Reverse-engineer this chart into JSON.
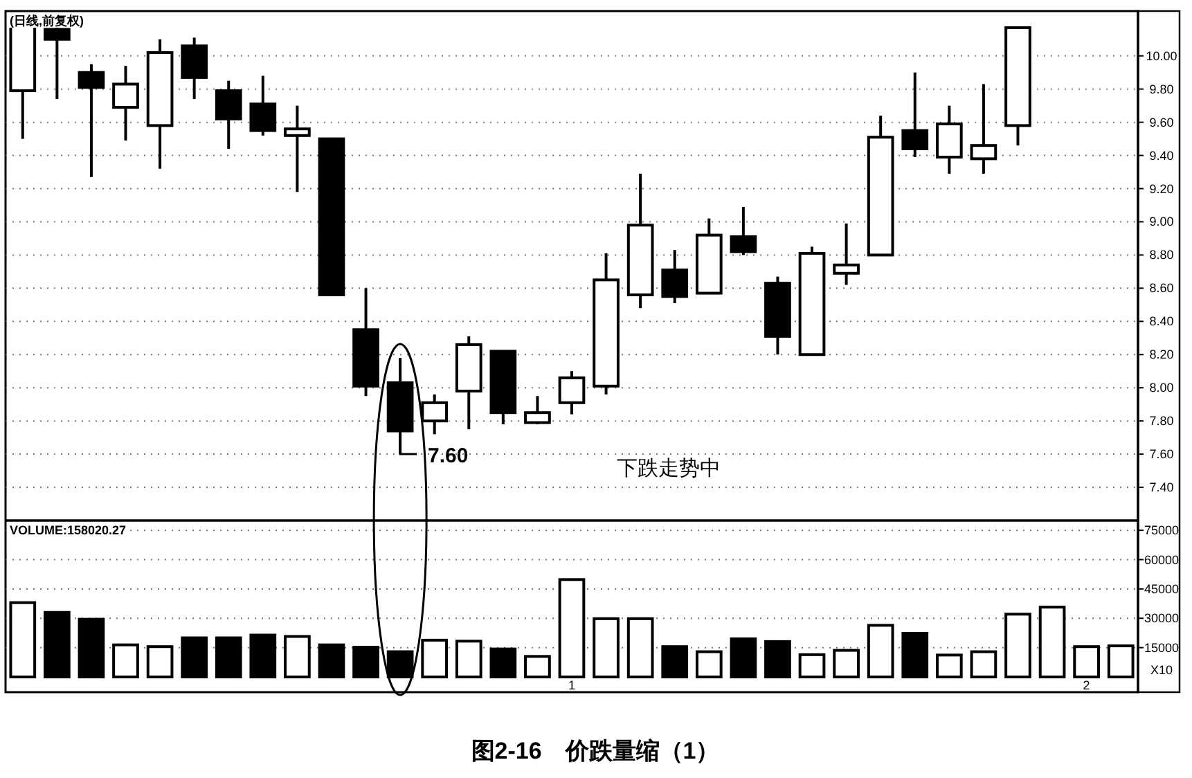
{
  "chart_data": [
    {
      "type": "candlestick",
      "subtitle": "(日线,前复权)",
      "color": "#000000",
      "categories": [
        null,
        null,
        null,
        null,
        null,
        null,
        null,
        null,
        null,
        null,
        null,
        null,
        null,
        null,
        null,
        null,
        null,
        null,
        null,
        null,
        null,
        null,
        null,
        null,
        null,
        null,
        null,
        null,
        null,
        null,
        null,
        null,
        null
      ],
      "ohlc": [
        [
          9.79,
          10.26,
          9.5,
          10.25
        ],
        [
          10.16,
          10.17,
          9.74,
          10.1
        ],
        [
          9.9,
          9.95,
          9.27,
          9.81
        ],
        [
          9.69,
          9.94,
          9.49,
          9.83
        ],
        [
          9.58,
          10.1,
          9.32,
          10.02
        ],
        [
          10.06,
          10.11,
          9.74,
          9.87
        ],
        [
          9.79,
          9.85,
          9.44,
          9.62
        ],
        [
          9.71,
          9.88,
          9.52,
          9.55
        ],
        [
          9.52,
          9.7,
          9.18,
          9.56
        ],
        [
          9.5,
          9.5,
          8.56,
          8.56
        ],
        [
          8.35,
          8.6,
          7.95,
          8.01
        ],
        [
          8.03,
          8.18,
          7.6,
          7.74
        ],
        [
          7.8,
          7.96,
          7.72,
          7.91
        ],
        [
          7.98,
          8.31,
          7.75,
          8.26
        ],
        [
          8.22,
          8.22,
          7.78,
          7.85
        ],
        [
          7.79,
          7.95,
          7.78,
          7.85
        ],
        [
          7.91,
          8.1,
          7.84,
          8.06
        ],
        [
          8.01,
          8.81,
          7.96,
          8.65
        ],
        [
          8.56,
          9.29,
          8.48,
          8.98
        ],
        [
          8.71,
          8.83,
          8.51,
          8.55
        ],
        [
          8.57,
          9.02,
          8.57,
          8.92
        ],
        [
          8.91,
          9.09,
          8.8,
          8.82
        ],
        [
          8.63,
          8.67,
          8.2,
          8.31
        ],
        [
          8.2,
          8.85,
          8.2,
          8.81
        ],
        [
          8.69,
          8.99,
          8.62,
          8.74
        ],
        [
          8.8,
          9.64,
          8.8,
          9.51
        ],
        [
          9.55,
          9.9,
          9.39,
          9.44
        ],
        [
          9.39,
          9.7,
          9.29,
          9.59
        ],
        [
          9.38,
          9.83,
          9.29,
          9.46
        ],
        [
          9.58,
          10.17,
          9.46,
          10.17
        ],
        null,
        null,
        null
      ],
      "ylim": [
        7.2,
        10.27
      ],
      "yticks": [
        {
          "value": 7.4,
          "label": "7.40"
        },
        {
          "value": 7.6,
          "label": "7.60"
        },
        {
          "value": 7.8,
          "label": "7.80"
        },
        {
          "value": 8.0,
          "label": "8.00"
        },
        {
          "value": 8.2,
          "label": "8.20"
        },
        {
          "value": 8.4,
          "label": "8.40"
        },
        {
          "value": 8.6,
          "label": "8.60"
        },
        {
          "value": 8.8,
          "label": "8.80"
        },
        {
          "value": 9.0,
          "label": "9.00"
        },
        {
          "value": 9.2,
          "label": "9.20"
        },
        {
          "value": 9.4,
          "label": "9.40"
        },
        {
          "value": 9.6,
          "label": "9.60"
        },
        {
          "value": 9.8,
          "label": "9.80"
        },
        {
          "value": 10.0,
          "label": "10.00"
        }
      ],
      "grid": "y",
      "tick_labels": "y",
      "annotations": [
        "7.60",
        "下跌走势中"
      ]
    },
    {
      "type": "bar",
      "title": "VOLUME:158020.27",
      "categories": [
        null,
        null,
        null,
        null,
        null,
        null,
        null,
        null,
        null,
        null,
        null,
        null,
        null,
        null,
        null,
        null,
        "1",
        null,
        null,
        null,
        null,
        null,
        null,
        null,
        null,
        null,
        null,
        null,
        null,
        null,
        null,
        "2",
        null
      ],
      "values": [
        38000,
        33000,
        29500,
        16400,
        15500,
        20000,
        20000,
        21400,
        20700,
        16400,
        15200,
        12900,
        18800,
        18300,
        14300,
        10500,
        49800,
        29800,
        29800,
        15500,
        12900,
        19500,
        18100,
        11400,
        13600,
        26400,
        22300,
        11200,
        12900,
        32100,
        35700,
        15500,
        15900
      ],
      "colors": [
        "#ffffff",
        "#000000",
        "#000000",
        "#ffffff",
        "#ffffff",
        "#000000",
        "#000000",
        "#000000",
        "#ffffff",
        "#000000",
        "#000000",
        "#000000",
        "#ffffff",
        "#ffffff",
        "#000000",
        "#ffffff",
        "#ffffff",
        "#ffffff",
        "#ffffff",
        "#000000",
        "#ffffff",
        "#000000",
        "#000000",
        "#ffffff",
        "#ffffff",
        "#ffffff",
        "#000000",
        "#ffffff",
        "#ffffff",
        "#ffffff",
        "#ffffff",
        "#ffffff",
        "#ffffff"
      ],
      "ylim": [
        0,
        80000
      ],
      "yticks": [
        15000,
        30000,
        45000,
        60000,
        75000
      ],
      "grid": "y",
      "annotations": [
        "X10",
        "图2-16　价跌量缩（1）"
      ]
    }
  ]
}
